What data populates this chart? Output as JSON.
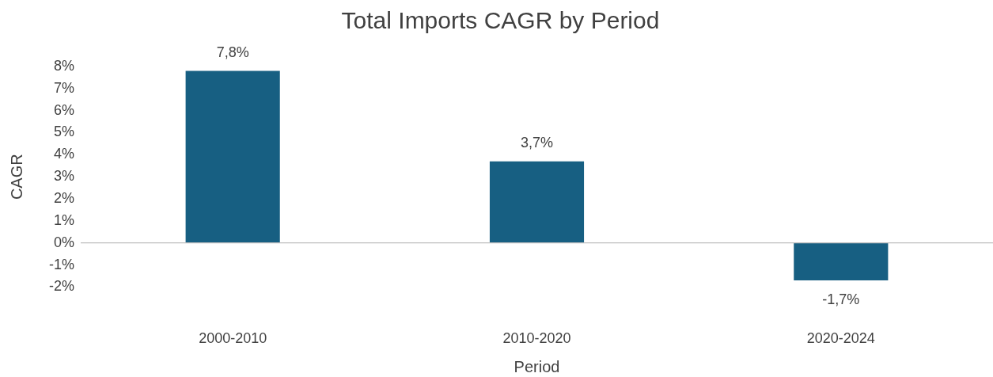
{
  "chart_data": {
    "type": "bar",
    "title": "Total Imports CAGR by Period",
    "xlabel": "Period",
    "ylabel": "CAGR",
    "categories": [
      "2000-2010",
      "2010-2020",
      "2020-2024"
    ],
    "series": [
      {
        "color": "#175f82",
        "values": [
          7.8,
          3.7,
          -1.7
        ],
        "value_labels": [
          "7,8%",
          "3,7%",
          "-1,7%"
        ]
      }
    ],
    "ylim": [
      -2,
      8
    ],
    "yticks": [
      {
        "value": -2,
        "label": "-2%"
      },
      {
        "value": -1,
        "label": "-1%"
      },
      {
        "value": 0,
        "label": "0%"
      },
      {
        "value": 1,
        "label": "1%"
      },
      {
        "value": 2,
        "label": "2%"
      },
      {
        "value": 3,
        "label": "3%"
      },
      {
        "value": 4,
        "label": "4%"
      },
      {
        "value": 5,
        "label": "5%"
      },
      {
        "value": 6,
        "label": "6%"
      },
      {
        "value": 7,
        "label": "7%"
      },
      {
        "value": 8,
        "label": "8%"
      }
    ],
    "ref_lines": [
      {
        "axis": "y",
        "value": 0,
        "color": "#bfbfbf"
      }
    ],
    "grid": false,
    "legend": false
  }
}
